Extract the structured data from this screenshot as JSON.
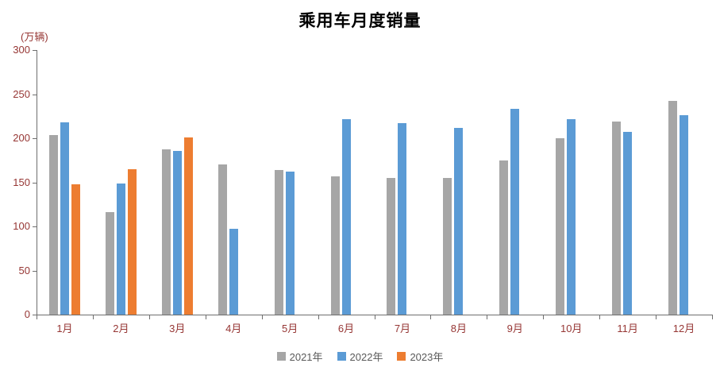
{
  "chart_data": {
    "type": "bar",
    "title": "乘用车月度销量",
    "unit_label": "(万辆)",
    "categories": [
      "1月",
      "2月",
      "3月",
      "4月",
      "5月",
      "6月",
      "7月",
      "8月",
      "9月",
      "10月",
      "11月",
      "12月"
    ],
    "series": [
      {
        "name": "2021年",
        "color": "#a6a6a6",
        "values": [
          204,
          116,
          187,
          170,
          164,
          157,
          155,
          155,
          175,
          200,
          219,
          242
        ]
      },
      {
        "name": "2022年",
        "color": "#5b9bd5",
        "values": [
          218,
          149,
          186,
          97,
          162,
          222,
          217,
          212,
          233,
          222,
          207,
          226
        ]
      },
      {
        "name": "2023年",
        "color": "#ed7d31",
        "values": [
          148,
          165,
          201,
          null,
          null,
          null,
          null,
          null,
          null,
          null,
          null,
          null
        ]
      }
    ],
    "ylim": [
      0,
      300
    ],
    "ytick_step": 50,
    "grid": false,
    "legend_position": "bottom"
  }
}
